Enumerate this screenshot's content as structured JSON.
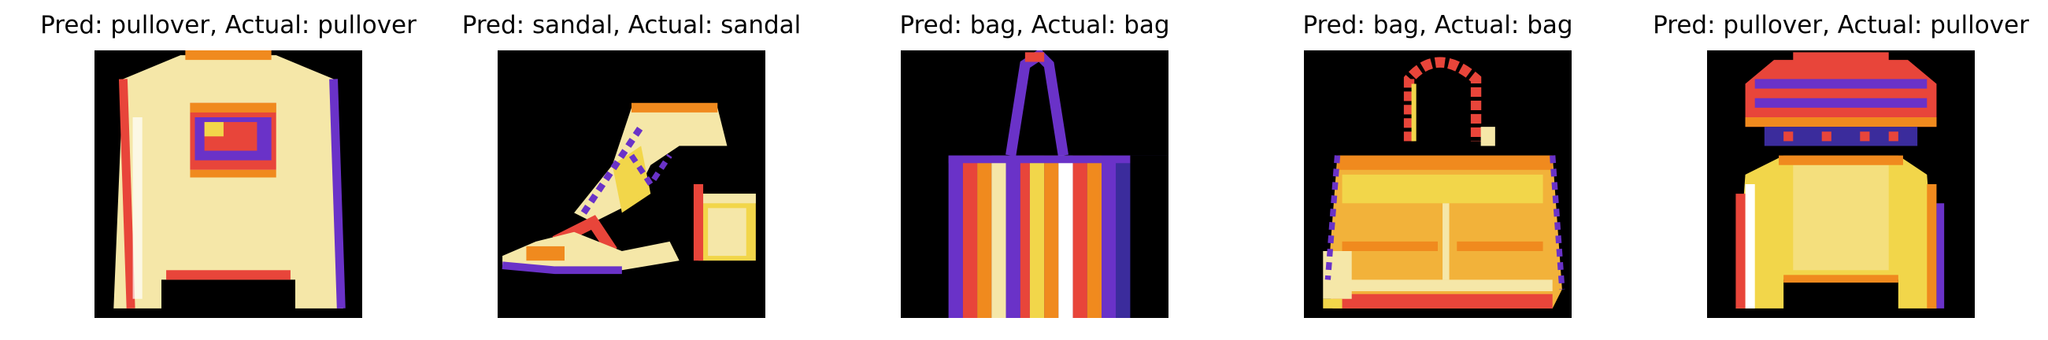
{
  "figure": {
    "panels": [
      {
        "title": "Pred: pullover, Actual: pullover",
        "pred": "pullover",
        "actual": "pullover",
        "item_icon": "pullover-icon"
      },
      {
        "title": "Pred: sandal, Actual: sandal",
        "pred": "sandal",
        "actual": "sandal",
        "item_icon": "sandal-icon"
      },
      {
        "title": "Pred: bag, Actual: bag",
        "pred": "bag",
        "actual": "bag",
        "item_icon": "tote-bag-icon"
      },
      {
        "title": "Pred: bag, Actual: bag",
        "pred": "bag",
        "actual": "bag",
        "item_icon": "handbag-icon"
      },
      {
        "title": "Pred: pullover, Actual: pullover",
        "pred": "pullover",
        "actual": "pullover",
        "item_icon": "pullover-icon"
      }
    ],
    "colormap": {
      "name": "CMRmap",
      "background": "#000000",
      "dark_purple": "#3b2c9c",
      "purple": "#6a32c8",
      "red": "#e8453a",
      "orange": "#f08a1e",
      "yellow": "#f2d64a",
      "pale": "#f7efc0"
    }
  }
}
